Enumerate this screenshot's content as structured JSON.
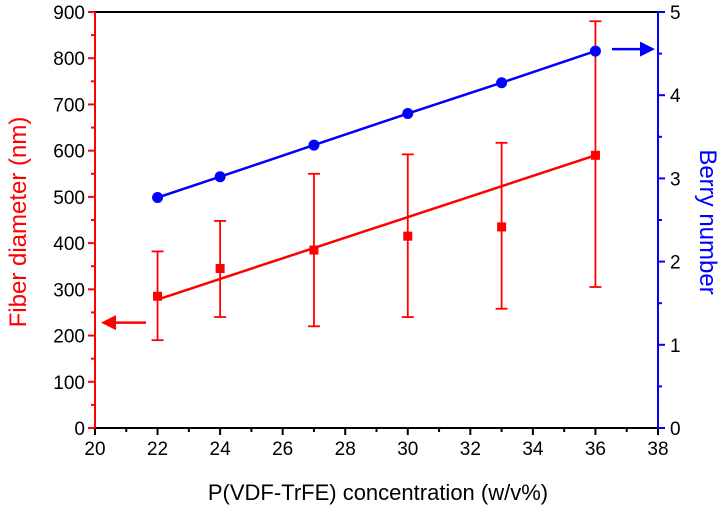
{
  "chart_data": {
    "type": "line",
    "xlabel": "P(VDF-TrFE) concentration (w/v%)",
    "ylabel_left": "Fiber diameter (nm)",
    "ylabel_right": "Berry number",
    "xlim": [
      20,
      38
    ],
    "ylim_left": [
      0,
      900
    ],
    "ylim_right": [
      0,
      5
    ],
    "x_ticks": [
      20,
      22,
      24,
      26,
      28,
      30,
      32,
      34,
      36,
      38
    ],
    "y_ticks_left": [
      0,
      100,
      200,
      300,
      400,
      500,
      600,
      700,
      800,
      900
    ],
    "y_ticks_right": [
      0,
      1,
      2,
      3,
      4,
      5
    ],
    "colors": {
      "fiber": "#ff0000",
      "berry": "#0000ff",
      "axis": "#000000"
    },
    "series": [
      {
        "name": "Fiber diameter",
        "axis": "left",
        "marker": "square",
        "x": [
          22,
          24,
          27,
          30,
          33,
          36
        ],
        "values": [
          285,
          345,
          385,
          415,
          435,
          590
        ],
        "err_low": [
          190,
          240,
          220,
          240,
          258,
          305
        ],
        "err_high": [
          382,
          448,
          550,
          592,
          617,
          880
        ],
        "fit": {
          "x": [
            22,
            36
          ],
          "y": [
            278,
            590
          ]
        }
      },
      {
        "name": "Berry number",
        "axis": "right",
        "marker": "circle",
        "x": [
          22,
          24,
          27,
          30,
          33,
          36
        ],
        "values": [
          2.77,
          3.02,
          3.4,
          3.78,
          4.15,
          4.53
        ]
      }
    ],
    "annotations": [
      {
        "type": "arrow",
        "points_to": "left axis",
        "color": "fiber"
      },
      {
        "type": "arrow",
        "points_to": "right axis",
        "color": "berry"
      }
    ]
  }
}
